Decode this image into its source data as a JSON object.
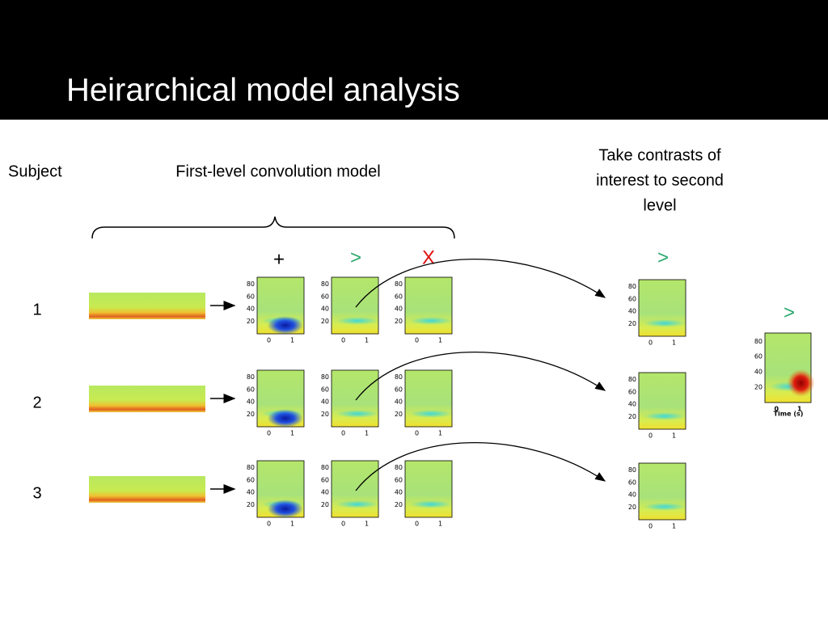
{
  "header": {
    "title": "Heirarchical model analysis"
  },
  "labels": {
    "subject": "Subject",
    "first_level": "First-level convolution model",
    "contrasts": [
      "Take contrasts of",
      "interest to second",
      "level"
    ]
  },
  "symbols": {
    "sum": "+",
    "greater": ">",
    "interaction": "X",
    "second_level": ">",
    "group": ">"
  },
  "subjects": [
    "1",
    "2",
    "3"
  ],
  "plot_axes": {
    "yticks": [
      "80",
      "60",
      "40",
      "20"
    ],
    "xticks": [
      "0",
      "1"
    ],
    "xlabel": "Time (s)"
  }
}
